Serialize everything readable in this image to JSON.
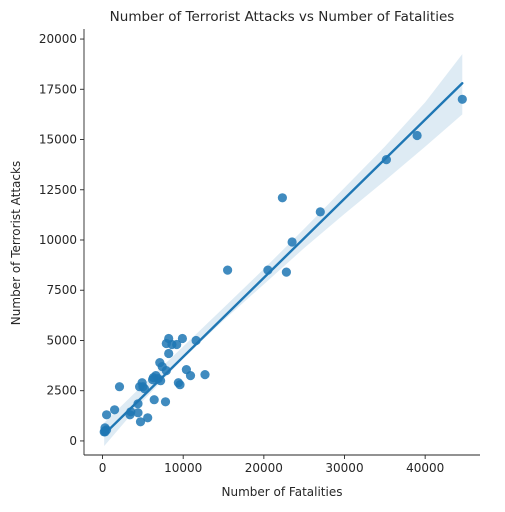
{
  "chart_data": {
    "type": "scatter",
    "title": "Number of Terrorist Attacks vs Number of Fatalities",
    "xlabel": "Number of Fatalities",
    "ylabel": "Number of Terrorist Attacks",
    "xlim": [
      -2300,
      46800
    ],
    "ylim": [
      -700,
      20500
    ],
    "xticks": [
      0,
      10000,
      20000,
      30000,
      40000
    ],
    "xtick_labels": [
      "0",
      "10000",
      "20000",
      "30000",
      "40000"
    ],
    "yticks": [
      0,
      2500,
      5000,
      7500,
      10000,
      12500,
      15000,
      17500,
      20000
    ],
    "ytick_labels": [
      "0",
      "2500",
      "5000",
      "7500",
      "10000",
      "12500",
      "15000",
      "17500",
      "20000"
    ],
    "grid": false,
    "colors": {
      "points": "#1f77b4",
      "line": "#1f77b4",
      "band": "#1f77b4"
    },
    "x": [
      44600,
      39000,
      35200,
      27000,
      23500,
      22300,
      22800,
      20500,
      15500,
      11600,
      12700,
      10900,
      10400,
      9900,
      9400,
      9200,
      9600,
      8600,
      8200,
      8200,
      7900,
      7900,
      7800,
      7400,
      7100,
      7200,
      6900,
      6600,
      6300,
      6400,
      6200,
      5600,
      5200,
      4900,
      5000,
      4600,
      4400,
      4400,
      4700,
      3500,
      3400,
      2100,
      1500,
      500,
      300,
      500,
      300,
      200,
      300
    ],
    "y": [
      17000,
      15200,
      14000,
      11400,
      9900,
      12100,
      8400,
      8500,
      8500,
      5000,
      3300,
      3250,
      3550,
      5100,
      2900,
      4800,
      2800,
      4800,
      5100,
      4350,
      4850,
      3500,
      1950,
      3700,
      3900,
      3000,
      3100,
      3250,
      3150,
      2050,
      3050,
      1150,
      2600,
      2900,
      2700,
      2700,
      1850,
      1400,
      950,
      1450,
      1300,
      2700,
      1550,
      1300,
      650,
      550,
      500,
      450,
      450
    ],
    "regression": {
      "x": [
        200,
        44600
      ],
      "y": [
        330,
        17800
      ]
    },
    "confidence_band": {
      "x": [
        200,
        5000,
        10000,
        15000,
        20000,
        25000,
        30000,
        35000,
        40000,
        44600
      ],
      "lower": [
        -250,
        1990,
        4100,
        6000,
        7800,
        9600,
        11300,
        12950,
        14650,
        16250
      ],
      "upper": [
        900,
        2790,
        4700,
        6620,
        8560,
        10560,
        12600,
        14650,
        16850,
        19250
      ]
    }
  }
}
